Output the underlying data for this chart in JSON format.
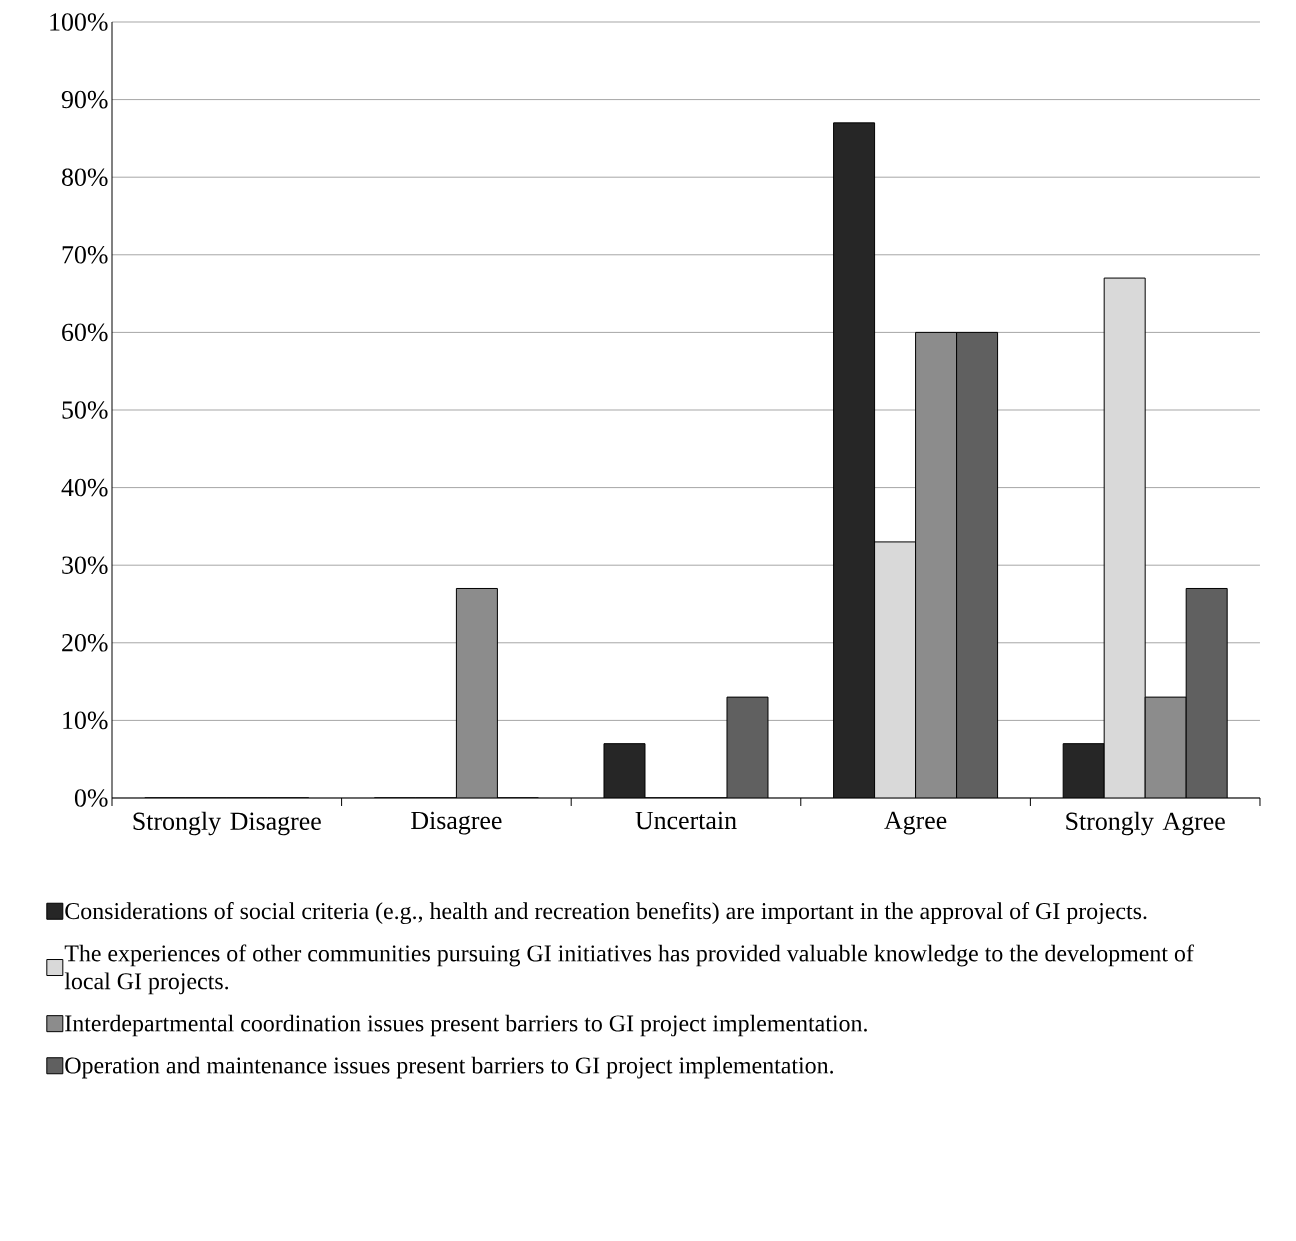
{
  "chart_data": {
    "type": "bar",
    "categories": [
      "Strongly Disagree",
      "Disagree",
      "Uncertain",
      "Agree",
      "Strongly Agree"
    ],
    "series": [
      {
        "name": "Considerations of social criteria (e.g., health and recreation benefits) are important in the approval of GI projects.",
        "color": "#262626",
        "values": [
          0,
          0,
          7,
          87,
          7
        ]
      },
      {
        "name": "The experiences of other communities pursuing GI initiatives has provided valuable knowledge to the development of local GI projects.",
        "color": "#d9d9d9",
        "values": [
          0,
          0,
          0,
          33,
          67
        ]
      },
      {
        "name": "Interdepartmental coordination issues present barriers to GI project implementation.",
        "color": "#8c8c8c",
        "values": [
          0,
          27,
          0,
          60,
          13
        ]
      },
      {
        "name": "Operation and maintenance issues present barriers to GI project implementation.",
        "color": "#606060",
        "values": [
          0,
          0,
          13,
          60,
          27
        ]
      }
    ],
    "ylim": [
      0,
      100
    ],
    "yticks": [
      {
        "value": 0,
        "label": "0%"
      },
      {
        "value": 10,
        "label": "10%"
      },
      {
        "value": 20,
        "label": "20%"
      },
      {
        "value": 30,
        "label": "30%"
      },
      {
        "value": 40,
        "label": "40%"
      },
      {
        "value": 50,
        "label": "50%"
      },
      {
        "value": 60,
        "label": "60%"
      },
      {
        "value": 70,
        "label": "70%"
      },
      {
        "value": 80,
        "label": "80%"
      },
      {
        "value": 90,
        "label": "90%"
      },
      {
        "value": 100,
        "label": "100%"
      }
    ],
    "grid": "y",
    "legend": "bottom"
  }
}
